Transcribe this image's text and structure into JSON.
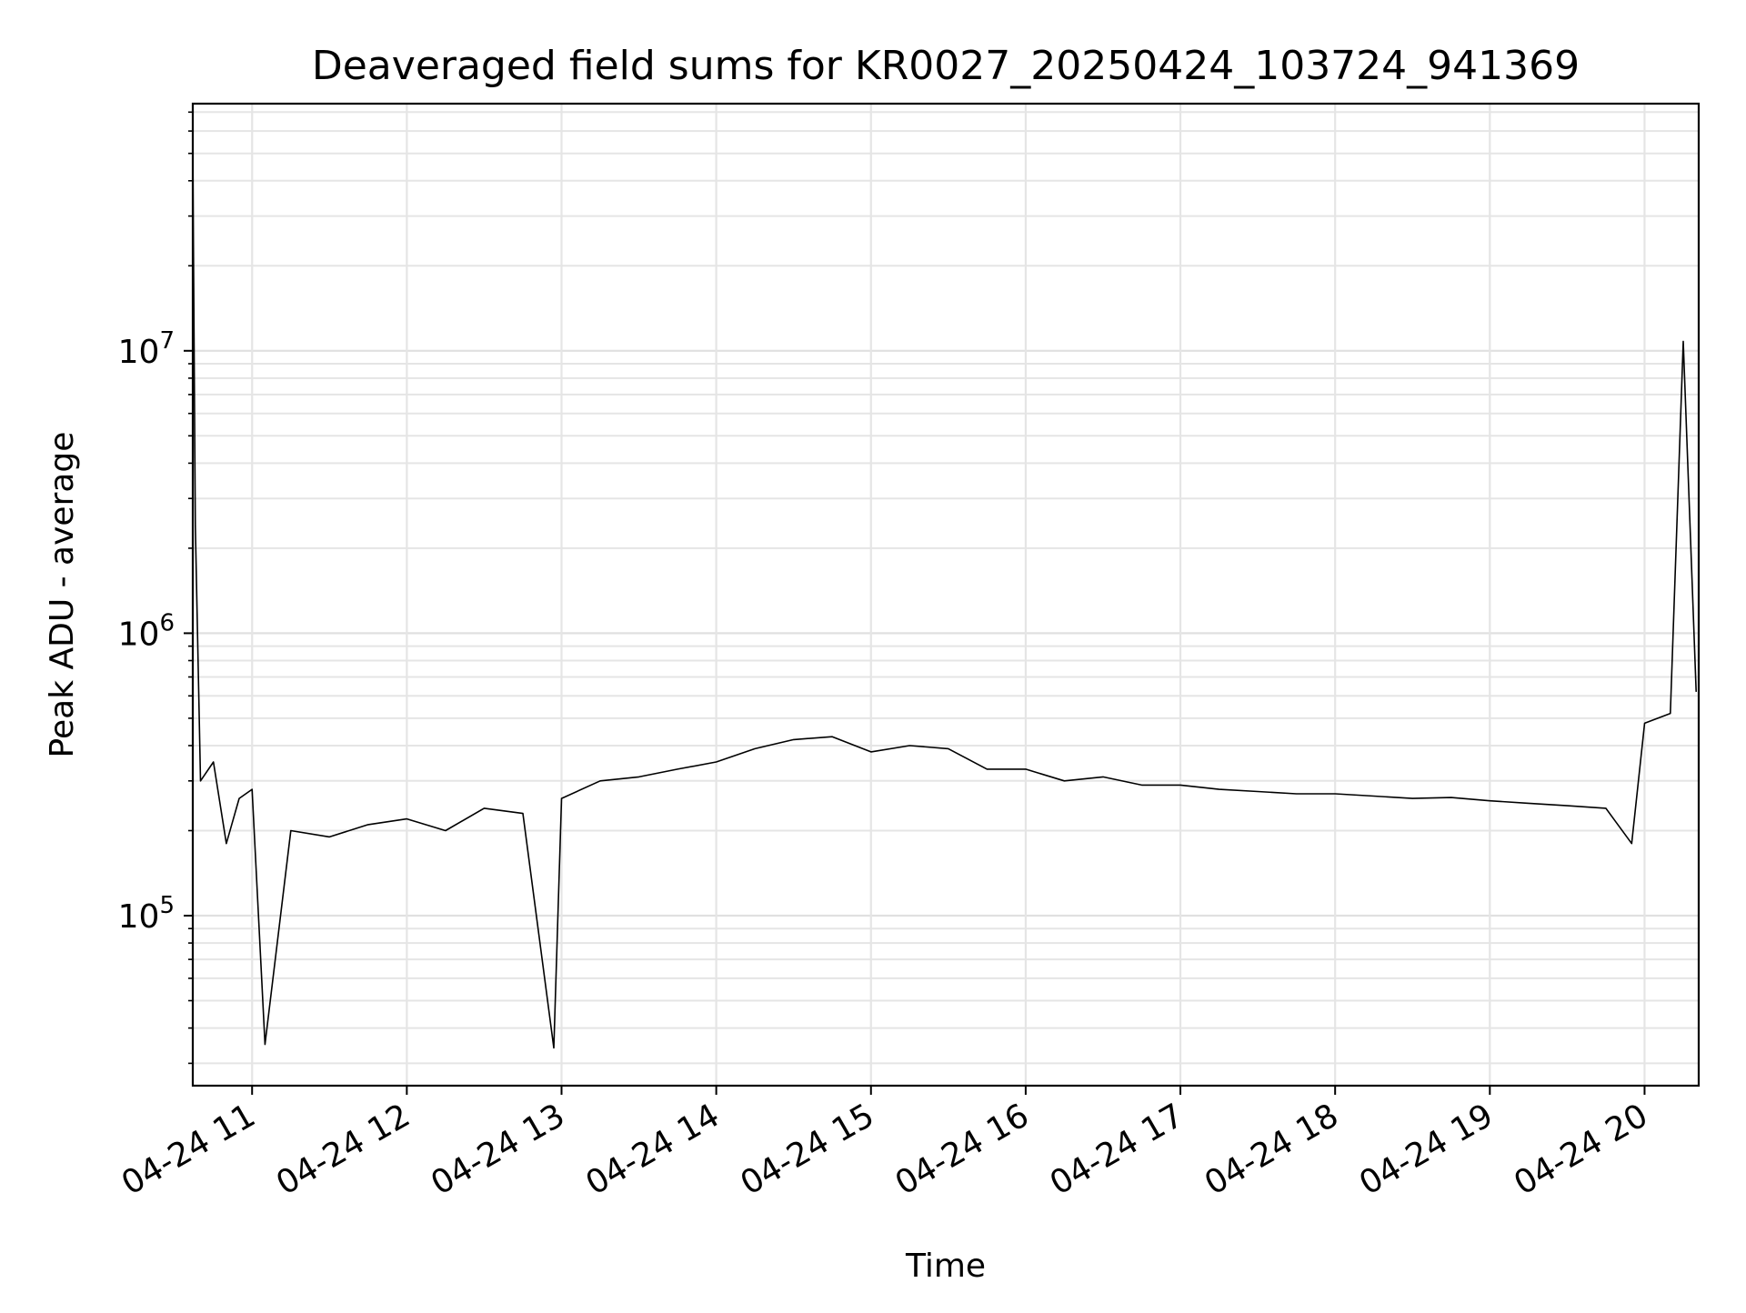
{
  "chart_data": {
    "type": "line",
    "title": "Deaveraged field sums for KR0027_20250424_103724_941369",
    "xlabel": "Time",
    "ylabel": "Peak ADU - average",
    "yscale": "log",
    "ylim": [
      25000,
      75000000
    ],
    "xlim": [
      "2025-04-24T10:37:00",
      "2025-04-24T20:21:00"
    ],
    "grid": true,
    "line_color": "#000000",
    "x_ticks": [
      "04-24 11",
      "04-24 12",
      "04-24 13",
      "04-24 14",
      "04-24 15",
      "04-24 16",
      "04-24 17",
      "04-24 18",
      "04-24 19",
      "04-24 20"
    ],
    "x_tick_times": [
      "2025-04-24T11:00",
      "2025-04-24T12:00",
      "2025-04-24T13:00",
      "2025-04-24T14:00",
      "2025-04-24T15:00",
      "2025-04-24T16:00",
      "2025-04-24T17:00",
      "2025-04-24T18:00",
      "2025-04-24T19:00",
      "2025-04-24T20:00"
    ],
    "y_ticks": [
      {
        "base": "10",
        "exp": "5",
        "value": 100000
      },
      {
        "base": "10",
        "exp": "6",
        "value": 1000000
      },
      {
        "base": "10",
        "exp": "7",
        "value": 10000000
      }
    ],
    "series": [
      {
        "x": [
          "2025-04-24T10:37",
          "2025-04-24T10:38",
          "2025-04-24T10:40",
          "2025-04-24T10:45",
          "2025-04-24T10:50",
          "2025-04-24T10:55",
          "2025-04-24T11:00",
          "2025-04-24T11:05",
          "2025-04-24T11:15",
          "2025-04-24T11:30",
          "2025-04-24T11:45",
          "2025-04-24T12:00",
          "2025-04-24T12:15",
          "2025-04-24T12:30",
          "2025-04-24T12:45",
          "2025-04-24T12:57",
          "2025-04-24T13:00",
          "2025-04-24T13:15",
          "2025-04-24T13:30",
          "2025-04-24T13:45",
          "2025-04-24T14:00",
          "2025-04-24T14:15",
          "2025-04-24T14:30",
          "2025-04-24T14:45",
          "2025-04-24T15:00",
          "2025-04-24T15:15",
          "2025-04-24T15:30",
          "2025-04-24T15:45",
          "2025-04-24T16:00",
          "2025-04-24T16:15",
          "2025-04-24T16:30",
          "2025-04-24T16:45",
          "2025-04-24T17:00",
          "2025-04-24T17:15",
          "2025-04-24T17:30",
          "2025-04-24T17:45",
          "2025-04-24T18:00",
          "2025-04-24T18:15",
          "2025-04-24T18:30",
          "2025-04-24T18:45",
          "2025-04-24T19:00",
          "2025-04-24T19:15",
          "2025-04-24T19:30",
          "2025-04-24T19:45",
          "2025-04-24T19:55",
          "2025-04-24T20:00",
          "2025-04-24T20:10",
          "2025-04-24T20:15",
          "2025-04-24T20:20"
        ],
        "y": [
          52000000,
          2400000,
          300000,
          350000,
          180000,
          260000,
          280000,
          35000,
          200000,
          190000,
          210000,
          220000,
          200000,
          240000,
          230000,
          34000,
          260000,
          300000,
          310000,
          330000,
          350000,
          390000,
          420000,
          430000,
          380000,
          400000,
          390000,
          330000,
          330000,
          300000,
          310000,
          290000,
          290000,
          280000,
          275000,
          270000,
          270000,
          265000,
          260000,
          262000,
          255000,
          250000,
          245000,
          240000,
          180000,
          480000,
          520000,
          10800000,
          620000
        ]
      }
    ]
  }
}
